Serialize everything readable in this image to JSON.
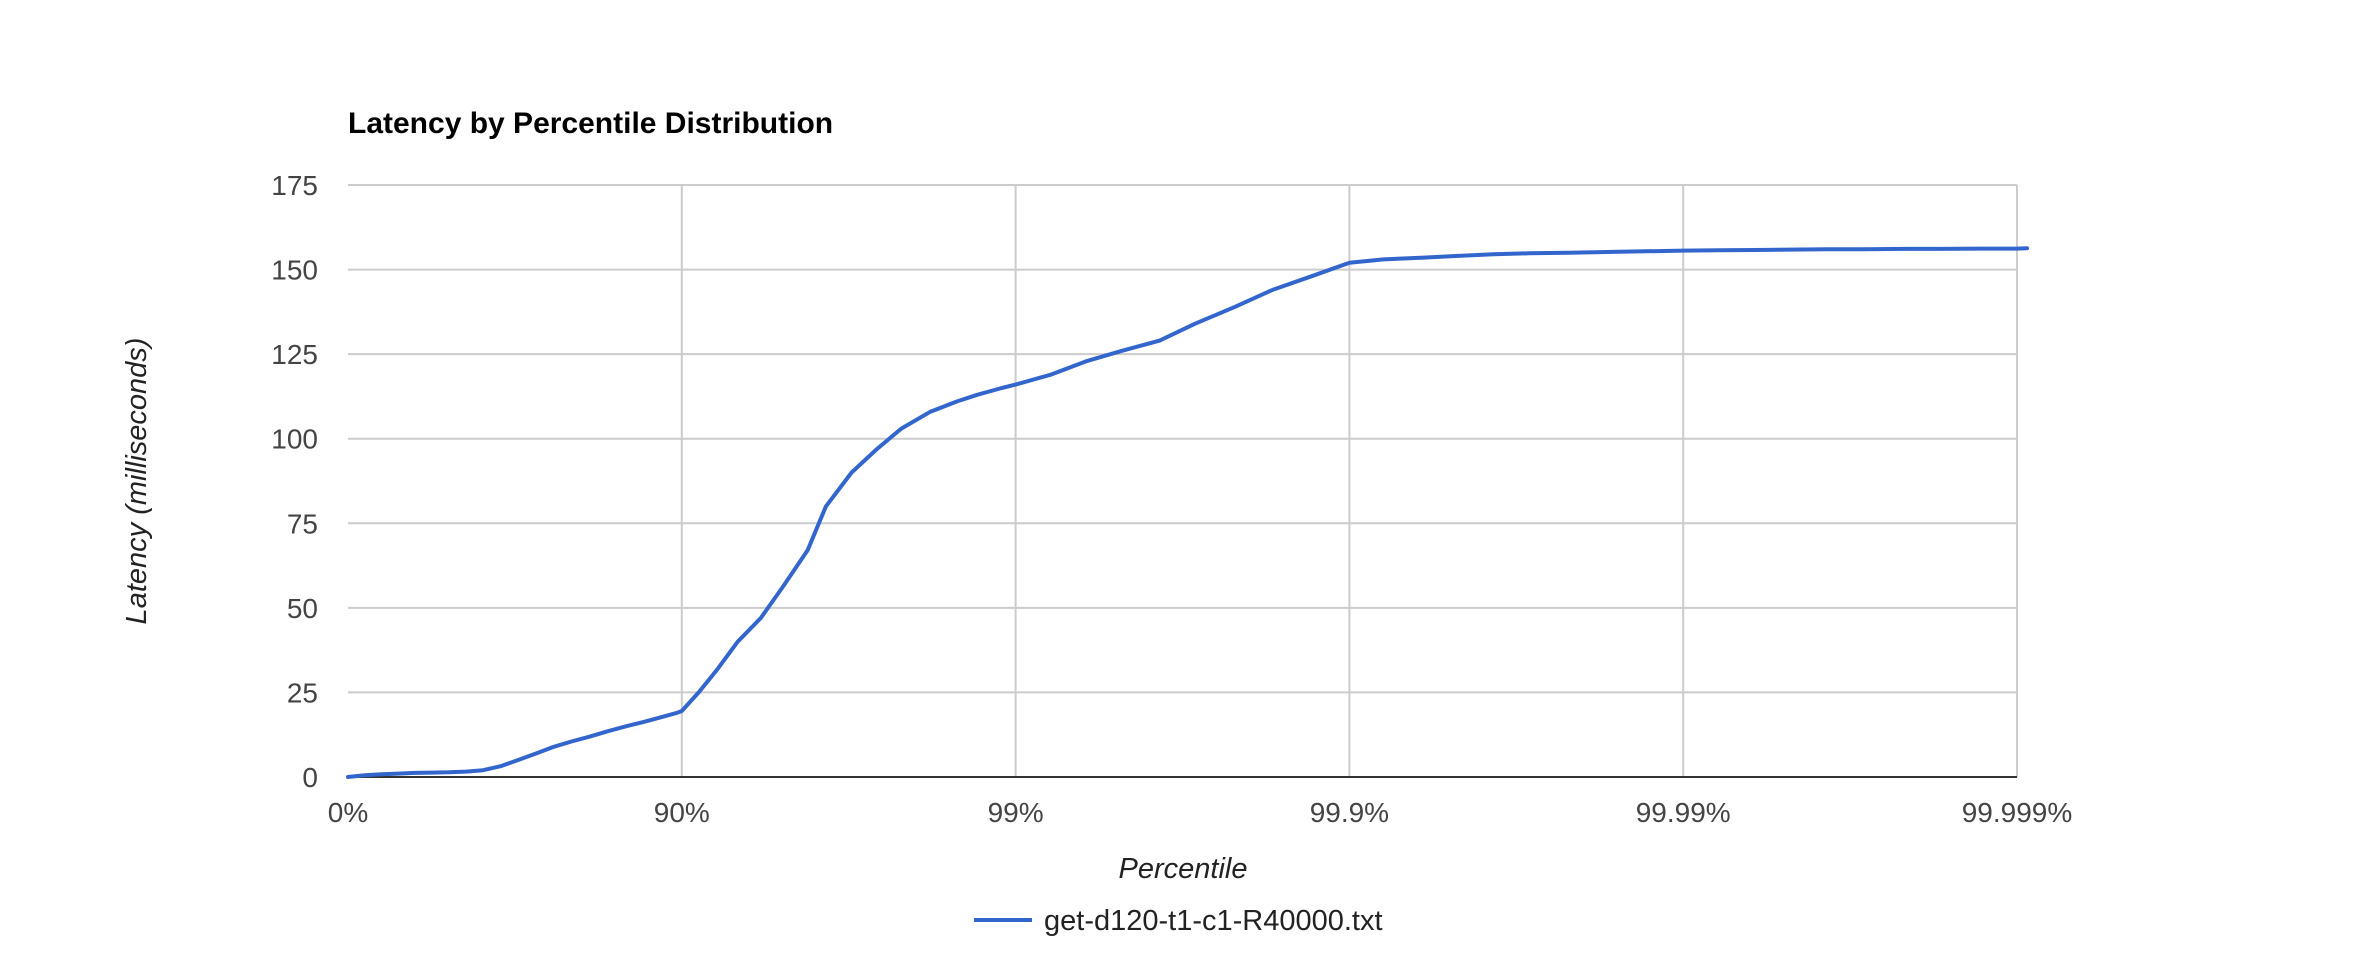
{
  "chart_data": {
    "type": "line",
    "title": "Latency by Percentile Distribution",
    "xlabel": "Percentile",
    "ylabel": "Latency (milliseconds)",
    "x_scale": "log-percentile",
    "x_ticks": [
      "0%",
      "90%",
      "99%",
      "99.9%",
      "99.99%",
      "99.999%"
    ],
    "y_ticks": [
      "0",
      "25",
      "50",
      "75",
      "100",
      "125",
      "150",
      "175"
    ],
    "ylim": [
      0,
      175
    ],
    "grid": true,
    "legend_position": "bottom",
    "series_color": "#3366cc",
    "series": [
      {
        "name": "get-d120-t1-c1-R40000.txt",
        "x": [
          "0%",
          "10.9%",
          "20.6%",
          "29.2%",
          "37.0%",
          "43.9%",
          "50.1%",
          "55.7%",
          "60.6%",
          "65.1%",
          "69.0%",
          "72.8%",
          "75.6%",
          "78.6%",
          "81.2%",
          "83.3%",
          "85.3%",
          "86.9%",
          "88.3%",
          "89.7%",
          "90.0%",
          "91.1%",
          "92.2%",
          "93.2%",
          "94.2%",
          "95.0%",
          "95.8%",
          "96.3%",
          "96.9%",
          "97.4%",
          "97.8%",
          "98.2%",
          "98.5%",
          "98.7%",
          "98.9%",
          "99.0%",
          "99.22%",
          "99.39%",
          "99.52%",
          "99.63%",
          "99.71%",
          "99.78%",
          "99.83%",
          "99.87%",
          "99.90%",
          "99.921%",
          "99.939%",
          "99.952%",
          "99.963%",
          "99.971%",
          "99.978%",
          "99.983%",
          "99.987%",
          "99.990%",
          "99.9922%",
          "99.9939%",
          "99.9952%",
          "99.9963%",
          "99.9971%",
          "99.9978%",
          "99.9983%",
          "99.9987%",
          "99.9990%",
          "99.99917%"
        ],
        "values": [
          0,
          0.5,
          0.8,
          1.0,
          1.2,
          1.3,
          1.4,
          1.6,
          2.0,
          3.2,
          5.0,
          7.0,
          8.8,
          10.5,
          12.0,
          13.5,
          15.0,
          16.2,
          17.5,
          19.0,
          19.5,
          25,
          32,
          40,
          47,
          56,
          67,
          80,
          90,
          97,
          103,
          108,
          111,
          113,
          115,
          116,
          119,
          123,
          126,
          129,
          134,
          139,
          144,
          148,
          152,
          153,
          153.5,
          154,
          154.5,
          154.8,
          155,
          155.2,
          155.4,
          155.6,
          155.7,
          155.8,
          155.9,
          156,
          156,
          156.1,
          156.1,
          156.2,
          156.2,
          156.3
        ]
      }
    ]
  }
}
